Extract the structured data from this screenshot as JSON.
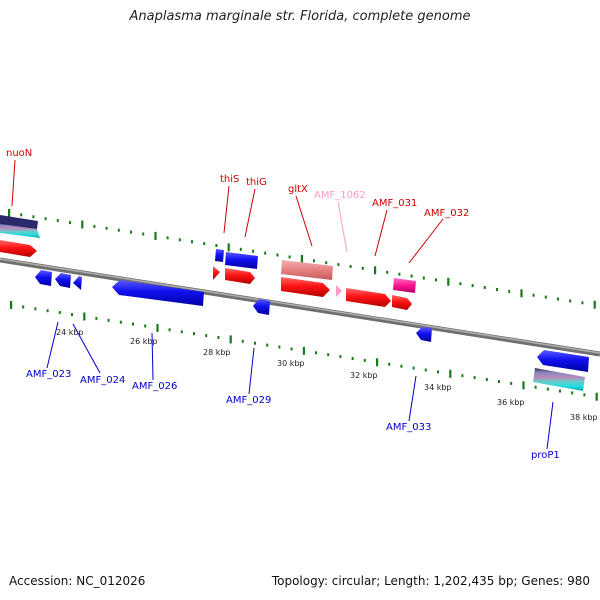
{
  "title": "Anaplasma marginale str. Florida, complete genome",
  "footer": {
    "accession": "Accession: NC_012026",
    "summary": "Topology: circular; Length: 1,202,435 bp; Genes: 980"
  },
  "colors": {
    "forward_gene": "#ff0000",
    "reverse_gene": "#0000ff",
    "forward_label": "#cc0000",
    "reverse_label": "#0000cc",
    "rna_label": "#ff9ac8",
    "backbone": "#888888",
    "tick": "#1a7a1a"
  },
  "kbp_ticks": [
    "24 kbp",
    "26 kbp",
    "28 kbp",
    "30 kbp",
    "32 kbp",
    "34 kbp",
    "36 kbp",
    "38 kbp"
  ],
  "forward_labels": [
    "nuoN",
    "thiS",
    "thiG",
    "gltX",
    "AMF_1062",
    "AMF_031",
    "AMF_032"
  ],
  "reverse_labels": [
    "AMF_023",
    "AMF_024",
    "AMF_026",
    "AMF_029",
    "AMF_033",
    "proP1"
  ]
}
